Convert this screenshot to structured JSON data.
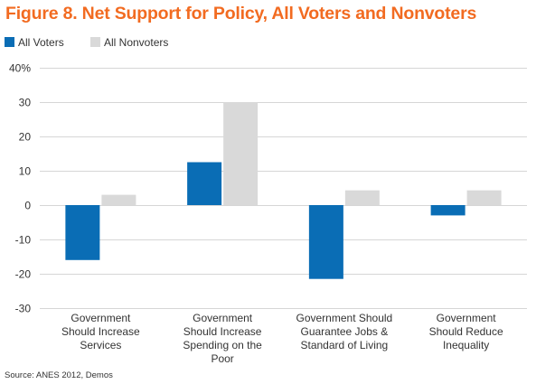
{
  "title": "Figure 8. Net Support for Policy, All Voters and Nonvoters",
  "source": "Source: ANES 2012, Demos",
  "chart_data": {
    "type": "bar",
    "title": "Figure 8. Net Support for Policy, All Voters and Nonvoters",
    "xlabel": "",
    "ylabel": "",
    "categories": [
      "Government Should Increase Services",
      "Government Should Increase Spending on the Poor",
      "Government Should Guarantee Jobs & Standard of Living",
      "Government Should Reduce Inequality"
    ],
    "category_lines": [
      [
        "Government",
        "Should Increase",
        "Services"
      ],
      [
        "Government",
        "Should Increase",
        "Spending on the",
        "Poor"
      ],
      [
        "Government Should",
        "Guarantee Jobs &",
        "Standard of Living"
      ],
      [
        "Government",
        "Should Reduce",
        "Inequality"
      ]
    ],
    "series": [
      {
        "name": "All Voters",
        "color": "#0a6db5",
        "values": [
          -16,
          12.5,
          -21.5,
          -3
        ]
      },
      {
        "name": "All Nonvoters",
        "color": "#d9d9d9",
        "values": [
          3,
          30,
          4.3,
          4.3
        ]
      }
    ],
    "yticks": [
      -30,
      -20,
      -10,
      0,
      10,
      20,
      30,
      40
    ],
    "ytick_labels": [
      "-30",
      "-20",
      "-10",
      "0",
      "10",
      "20",
      "30",
      "40%"
    ],
    "ylim": [
      -30,
      40
    ],
    "grid": true,
    "legend": "top-left"
  }
}
